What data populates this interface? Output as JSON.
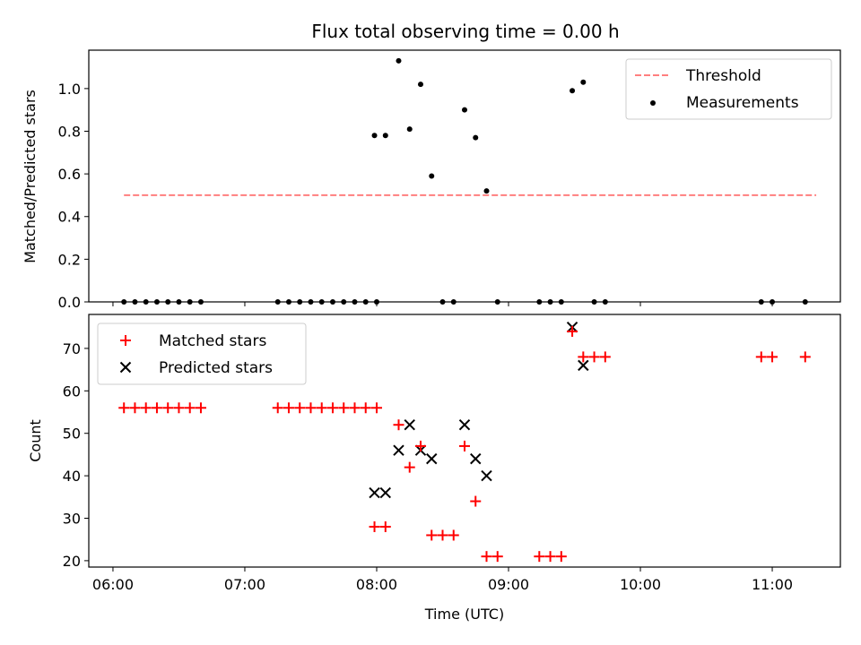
{
  "chart_data": [
    {
      "type": "scatter",
      "title": "Flux total observing time = 0.00 h",
      "ylabel": "Matched/Predicted stars",
      "xlim": [
        "05:49",
        "11:31"
      ],
      "ylim": [
        0,
        1.18
      ],
      "yticks": [
        0.0,
        0.2,
        0.4,
        0.6,
        0.8,
        1.0
      ],
      "ytick_labels": [
        "0.0",
        "0.2",
        "0.4",
        "0.6",
        "0.8",
        "1.0"
      ],
      "legend": {
        "placement": "top-right",
        "entries": [
          {
            "label": "Threshold",
            "marker": "dashed-line",
            "color": "#ff7f7f"
          },
          {
            "label": "Measurements",
            "marker": "dot",
            "color": "#000000"
          }
        ]
      },
      "series": [
        {
          "name": "Threshold",
          "style": "dashed-line",
          "color": "#ff7f7f",
          "x": [
            "06:05",
            "11:20"
          ],
          "y": [
            0.5,
            0.5
          ]
        },
        {
          "name": "Measurements",
          "style": "dot",
          "color": "#000000",
          "x": [
            "06:05",
            "06:10",
            "06:15",
            "06:20",
            "06:25",
            "06:30",
            "06:35",
            "06:40",
            "07:15",
            "07:20",
            "07:25",
            "07:30",
            "07:35",
            "07:40",
            "07:45",
            "07:50",
            "07:55",
            "08:00",
            "07:59",
            "08:04",
            "08:10",
            "08:15",
            "08:20",
            "08:25",
            "08:30",
            "08:35",
            "08:40",
            "08:45",
            "08:50",
            "08:55",
            "09:14",
            "09:19",
            "09:24",
            "09:29",
            "09:34",
            "09:39",
            "09:44",
            "10:55",
            "11:00",
            "11:15"
          ],
          "y": [
            0,
            0,
            0,
            0,
            0,
            0,
            0,
            0,
            0,
            0,
            0,
            0,
            0,
            0,
            0,
            0,
            0,
            0,
            0.78,
            0.78,
            1.13,
            0.81,
            1.02,
            0.59,
            0,
            0,
            0.9,
            0.77,
            0.52,
            0,
            0,
            0,
            0,
            0.99,
            1.03,
            0,
            0,
            0,
            0,
            0
          ]
        }
      ]
    },
    {
      "type": "scatter",
      "xlabel": "Time (UTC)",
      "ylabel": "Count",
      "xlim": [
        "05:49",
        "11:31"
      ],
      "ylim": [
        18.5,
        78
      ],
      "xticks": [
        "06:00",
        "07:00",
        "08:00",
        "09:00",
        "10:00",
        "11:00"
      ],
      "yticks": [
        20,
        30,
        40,
        50,
        60,
        70
      ],
      "ytick_labels": [
        "20",
        "30",
        "40",
        "50",
        "60",
        "70"
      ],
      "legend": {
        "placement": "top-left",
        "entries": [
          {
            "label": "Matched stars",
            "marker": "plus",
            "color": "#ff0000"
          },
          {
            "label": "Predicted stars",
            "marker": "x",
            "color": "#000000"
          }
        ]
      },
      "series": [
        {
          "name": "Matched stars",
          "style": "plus",
          "color": "#ff0000",
          "x": [
            "06:05",
            "06:10",
            "06:15",
            "06:20",
            "06:25",
            "06:30",
            "06:35",
            "06:40",
            "07:15",
            "07:20",
            "07:25",
            "07:30",
            "07:35",
            "07:40",
            "07:45",
            "07:50",
            "07:55",
            "08:00",
            "07:59",
            "08:04",
            "08:10",
            "08:15",
            "08:20",
            "08:25",
            "08:30",
            "08:35",
            "08:40",
            "08:45",
            "08:50",
            "08:55",
            "09:14",
            "09:19",
            "09:24",
            "09:29",
            "09:34",
            "09:39",
            "09:44",
            "10:55",
            "11:00",
            "11:15"
          ],
          "y": [
            56,
            56,
            56,
            56,
            56,
            56,
            56,
            56,
            56,
            56,
            56,
            56,
            56,
            56,
            56,
            56,
            56,
            56,
            28,
            28,
            52,
            42,
            47,
            26,
            26,
            26,
            47,
            34,
            21,
            21,
            21,
            21,
            21,
            74,
            68,
            68,
            68,
            68,
            68,
            68
          ]
        },
        {
          "name": "Predicted stars",
          "style": "x",
          "color": "#000000",
          "x": [
            "07:59",
            "08:04",
            "08:10",
            "08:15",
            "08:20",
            "08:25",
            "08:40",
            "08:45",
            "08:50",
            "09:29",
            "09:34"
          ],
          "y": [
            36,
            36,
            46,
            52,
            46,
            44,
            52,
            44,
            40,
            75,
            66
          ]
        }
      ]
    }
  ]
}
